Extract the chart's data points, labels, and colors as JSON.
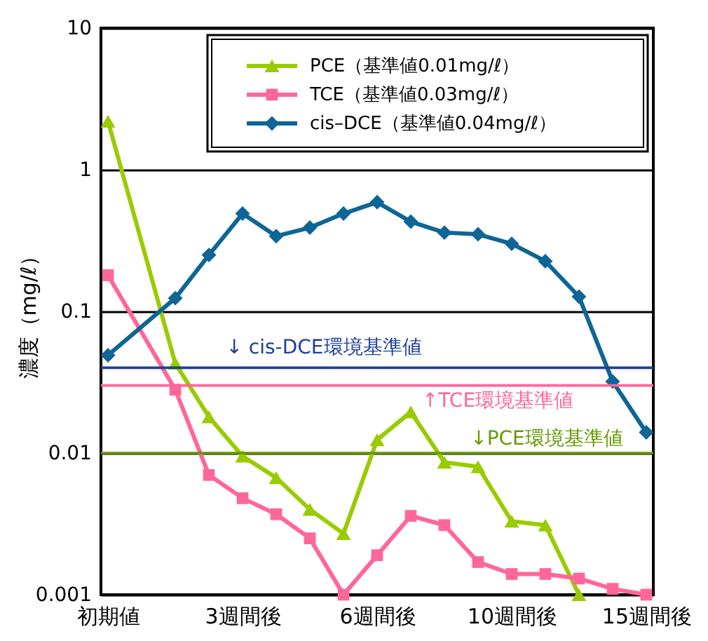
{
  "chart_data": {
    "type": "line",
    "ylabel": "濃度（mg/ℓ）",
    "categories": [
      "初期値",
      null,
      null,
      null,
      "3週間後",
      null,
      null,
      null,
      "6週間後",
      null,
      null,
      null,
      "10週間後",
      null,
      null,
      null,
      "15週間後"
    ],
    "series": [
      {
        "name": "PCE（基準値0.01mg/ℓ）",
        "color": "#99cc00",
        "marker": "triangle",
        "values": [
          2.2,
          null,
          0.043,
          0.018,
          0.0095,
          0.0067,
          0.004,
          0.0027,
          0.0124,
          0.0195,
          0.0086,
          0.008,
          0.0033,
          0.0031,
          0.001,
          null,
          null
        ]
      },
      {
        "name": "TCE（基準値0.03mg/ℓ）",
        "color": "#ff6699",
        "marker": "square",
        "values": [
          0.18,
          null,
          0.028,
          0.007,
          0.0048,
          0.0037,
          0.0025,
          0.001,
          0.0019,
          0.0036,
          0.0031,
          0.0017,
          0.0014,
          0.0014,
          0.0013,
          0.0011,
          0.001
        ]
      },
      {
        "name": "cis–DCE（基準値0.04mg/ℓ）",
        "color": "#0e6596",
        "marker": "diamond",
        "values": [
          0.049,
          null,
          0.124,
          0.25,
          0.49,
          0.34,
          0.39,
          0.49,
          0.59,
          0.43,
          0.36,
          0.35,
          0.3,
          0.226,
          0.127,
          0.032,
          0.014
        ]
      }
    ],
    "ref_lines": [
      {
        "axis": "y",
        "value": 0.04,
        "label": "↓ cis-DCE環境基準値",
        "color": "#1f3f99"
      },
      {
        "axis": "y",
        "value": 0.03,
        "label": "↑TCE環境基準値",
        "color": "#ff6699"
      },
      {
        "axis": "y",
        "value": 0.01,
        "label": "↓PCE環境基準値",
        "color": "#669900"
      }
    ],
    "ylim": [
      0.001,
      10
    ],
    "yticks": [
      0.001,
      0.01,
      0.1,
      1,
      10
    ],
    "log": true,
    "grid": "y",
    "legend": "top right"
  }
}
